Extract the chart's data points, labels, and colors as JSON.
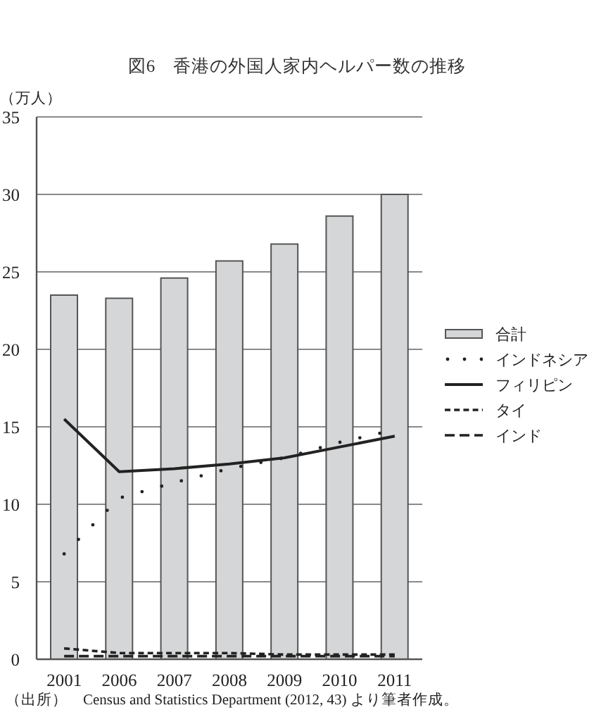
{
  "chart_data": {
    "type": "bar",
    "title": "図6　香港の外国人家内ヘルパー数の推移",
    "ylabel": "（万人）",
    "annotations": [
      "（出所）　Census and Statistics Department (2012, 43) より筆者作成。"
    ],
    "categories": [
      "2001",
      "2006",
      "2007",
      "2008",
      "2009",
      "2010",
      "2011"
    ],
    "series": [
      {
        "name": "合計",
        "color": "#d5d6d7",
        "values": [
          23.5,
          23.3,
          24.6,
          25.7,
          26.8,
          28.6,
          30.0
        ]
      },
      {
        "name": "インドネシア",
        "type": "line",
        "color": "#222222",
        "line_style": "dotted",
        "values": [
          6.8,
          10.4,
          11.4,
          12.3,
          13.0,
          14.0,
          14.8
        ]
      },
      {
        "name": "フィリピン",
        "type": "line",
        "color": "#222222",
        "line_style": "solid",
        "values": [
          15.5,
          12.1,
          12.3,
          12.6,
          13.0,
          13.7,
          14.4
        ]
      },
      {
        "name": "タイ",
        "type": "line",
        "color": "#222222",
        "line_style": "dashed",
        "values": [
          0.7,
          0.4,
          0.4,
          0.4,
          0.3,
          0.3,
          0.3
        ]
      },
      {
        "name": "インド",
        "type": "line",
        "color": "#222222",
        "line_style": "dashed",
        "values": [
          0.2,
          0.2,
          0.2,
          0.2,
          0.2,
          0.2,
          0.2
        ]
      }
    ],
    "ylim": [
      0,
      35
    ],
    "yticks": [
      0,
      5,
      10,
      15,
      20,
      25,
      30,
      35
    ],
    "grid": "y",
    "legend": "right",
    "marker": "none"
  }
}
